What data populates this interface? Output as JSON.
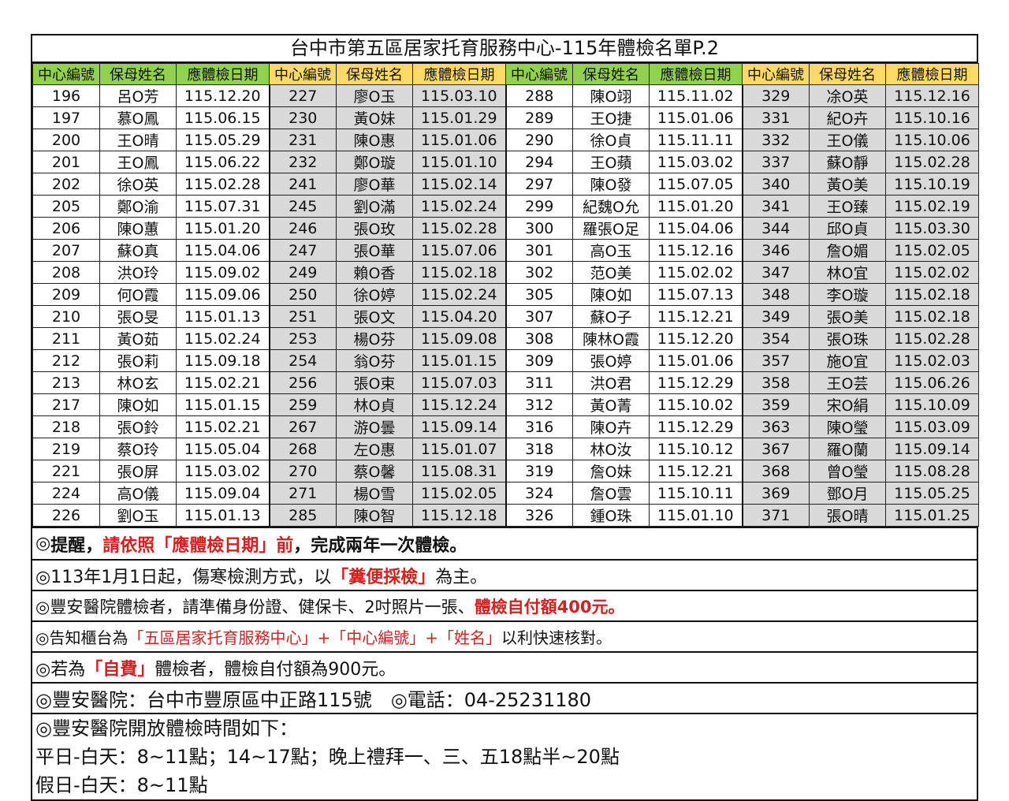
{
  "title": "台中市第五區居家托育服務中心-115年體檢名單P.2",
  "headers": [
    "中心編號",
    "保母姓名",
    "應體檢日期"
  ],
  "colors": {
    "header_green": "#92d050",
    "header_yellow": "#ffd966",
    "shaded": "#d9d9d9",
    "emphasis_red": "#d42020"
  },
  "groups": [
    {
      "header_color": "green",
      "shaded": false,
      "rows": [
        [
          "196",
          "呂O芳",
          "115.12.20"
        ],
        [
          "197",
          "慕O鳳",
          "115.06.15"
        ],
        [
          "200",
          "王O晴",
          "115.05.29"
        ],
        [
          "201",
          "王O鳳",
          "115.06.22"
        ],
        [
          "202",
          "徐O英",
          "115.02.28"
        ],
        [
          "205",
          "鄭O渝",
          "115.07.31"
        ],
        [
          "206",
          "陳O蕙",
          "115.01.20"
        ],
        [
          "207",
          "蘇O真",
          "115.04.06"
        ],
        [
          "208",
          "洪O玲",
          "115.09.02"
        ],
        [
          "209",
          "何O霞",
          "115.09.06"
        ],
        [
          "210",
          "張O旻",
          "115.01.13"
        ],
        [
          "211",
          "黃O茹",
          "115.02.24"
        ],
        [
          "212",
          "張O莉",
          "115.09.18"
        ],
        [
          "213",
          "林O玄",
          "115.02.21"
        ],
        [
          "217",
          "陳O如",
          "115.01.15"
        ],
        [
          "218",
          "張O鈴",
          "115.02.21"
        ],
        [
          "219",
          "蔡O玲",
          "115.05.04"
        ],
        [
          "221",
          "張O屏",
          "115.03.02"
        ],
        [
          "224",
          "高O儀",
          "115.09.04"
        ],
        [
          "226",
          "劉O玉",
          "115.01.13"
        ]
      ]
    },
    {
      "header_color": "yellow",
      "shaded": true,
      "rows": [
        [
          "227",
          "廖O玉",
          "115.03.10"
        ],
        [
          "230",
          "黃O妹",
          "115.01.29"
        ],
        [
          "231",
          "陳O惠",
          "115.01.06"
        ],
        [
          "232",
          "鄭O璇",
          "115.01.10"
        ],
        [
          "241",
          "廖O華",
          "115.02.14"
        ],
        [
          "245",
          "劉O滿",
          "115.02.24"
        ],
        [
          "246",
          "張O玫",
          "115.02.28"
        ],
        [
          "247",
          "張O華",
          "115.07.06"
        ],
        [
          "249",
          "賴O香",
          "115.02.18"
        ],
        [
          "250",
          "徐O婷",
          "115.02.24"
        ],
        [
          "251",
          "張O文",
          "115.04.20"
        ],
        [
          "253",
          "楊O芬",
          "115.09.08"
        ],
        [
          "254",
          "翁O芬",
          "115.01.15"
        ],
        [
          "256",
          "張O束",
          "115.07.03"
        ],
        [
          "259",
          "林O貞",
          "115.12.24"
        ],
        [
          "267",
          "游O曇",
          "115.09.14"
        ],
        [
          "268",
          "左O惠",
          "115.01.07"
        ],
        [
          "270",
          "蔡O馨",
          "115.08.31"
        ],
        [
          "271",
          "楊O雪",
          "115.02.05"
        ],
        [
          "285",
          "陳O智",
          "115.12.18"
        ]
      ]
    },
    {
      "header_color": "green",
      "shaded": false,
      "rows": [
        [
          "288",
          "陳O翊",
          "115.11.02"
        ],
        [
          "289",
          "王O捷",
          "115.01.06"
        ],
        [
          "290",
          "徐O貞",
          "115.11.11"
        ],
        [
          "294",
          "王O蘋",
          "115.03.02"
        ],
        [
          "297",
          "陳O發",
          "115.07.05"
        ],
        [
          "299",
          "紀魏O允",
          "115.01.20"
        ],
        [
          "300",
          "羅張O足",
          "115.04.06"
        ],
        [
          "301",
          "高O玉",
          "115.12.16"
        ],
        [
          "302",
          "范O美",
          "115.02.02"
        ],
        [
          "305",
          "陳O如",
          "115.07.13"
        ],
        [
          "307",
          "蘇O子",
          "115.12.21"
        ],
        [
          "308",
          "陳林O霞",
          "115.12.20"
        ],
        [
          "309",
          "張O婷",
          "115.01.06"
        ],
        [
          "311",
          "洪O君",
          "115.12.29"
        ],
        [
          "312",
          "黃O菁",
          "115.10.02"
        ],
        [
          "316",
          "陳O卉",
          "115.12.29"
        ],
        [
          "318",
          "林O汝",
          "115.10.12"
        ],
        [
          "319",
          "詹O妹",
          "115.12.21"
        ],
        [
          "324",
          "詹O雲",
          "115.10.11"
        ],
        [
          "326",
          "鍾O珠",
          "115.01.10"
        ]
      ]
    },
    {
      "header_color": "yellow",
      "shaded": true,
      "rows": [
        [
          "329",
          "凃O英",
          "115.12.16"
        ],
        [
          "331",
          "紀O卉",
          "115.10.16"
        ],
        [
          "332",
          "王O儀",
          "115.10.06"
        ],
        [
          "337",
          "蘇O靜",
          "115.02.28"
        ],
        [
          "340",
          "黃O美",
          "115.10.19"
        ],
        [
          "341",
          "王O臻",
          "115.02.19"
        ],
        [
          "344",
          "邱O貞",
          "115.03.30"
        ],
        [
          "346",
          "詹O媚",
          "115.02.05"
        ],
        [
          "347",
          "林O宜",
          "115.02.02"
        ],
        [
          "348",
          "李O璇",
          "115.02.18"
        ],
        [
          "349",
          "張O美",
          "115.02.18"
        ],
        [
          "354",
          "張O珠",
          "115.02.28"
        ],
        [
          "357",
          "施O宜",
          "115.02.03"
        ],
        [
          "358",
          "王O芸",
          "115.06.26"
        ],
        [
          "359",
          "宋O絹",
          "115.10.09"
        ],
        [
          "363",
          "陳O瑩",
          "115.03.09"
        ],
        [
          "367",
          "羅O蘭",
          "115.09.14"
        ],
        [
          "368",
          "曾O瑩",
          "115.08.28"
        ],
        [
          "369",
          "鄧O月",
          "115.05.25"
        ],
        [
          "371",
          "張O晴",
          "115.01.25"
        ]
      ]
    }
  ],
  "notes": [
    [
      {
        "t": "◎"
      },
      {
        "t": "提醒，",
        "bold": true
      },
      {
        "t": "請依照「應體檢日期」前",
        "bold": true,
        "red": true
      },
      {
        "t": "，完成兩年一次體檢。",
        "bold": true
      }
    ],
    [
      {
        "t": "◎113年1月1日起，傷寒檢測方式，以"
      },
      {
        "t": "「糞便採檢」",
        "bold": true,
        "red": true
      },
      {
        "t": "為主。"
      }
    ],
    [
      {
        "t": "◎豐安醫院體檢者，請準備身份證、健保卡、2吋照片一張、"
      },
      {
        "t": "體檢自付額400元。",
        "bold": true,
        "red": true
      }
    ],
    [
      {
        "t": "◎告知櫃台為"
      },
      {
        "t": "「五區居家托育服務中心」+「中心編號」+「姓名」",
        "red": true
      },
      {
        "t": "以利快速核對。"
      }
    ],
    [
      {
        "t": "◎若為"
      },
      {
        "t": "「自費」",
        "bold": true,
        "red": true
      },
      {
        "t": "體檢者，體檢自付額為900元。"
      }
    ],
    [
      {
        "t": "◎豐安醫院：台中市豐原區中正路115號　◎電話：04-25231180"
      }
    ]
  ],
  "hours": {
    "heading": "◎豐安醫院開放體檢時間如下：",
    "weekday": "平日-白天：8~11點；14~17點；晚上禮拜一、三、五18點半~20點",
    "holiday": "假日-白天：8~11點"
  }
}
